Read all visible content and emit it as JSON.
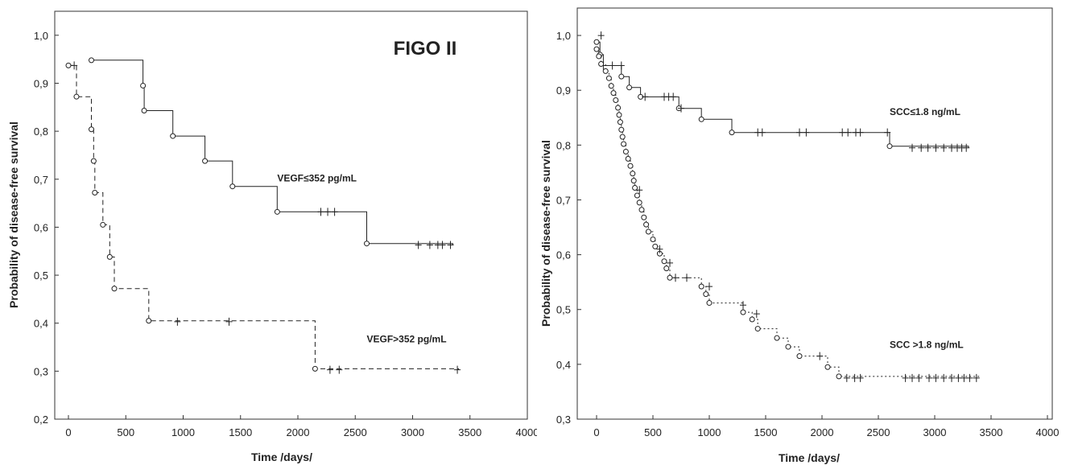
{
  "chart_data": [
    {
      "type": "line",
      "title": "FIGO II",
      "xlabel": "Time /days/",
      "ylabel": "Probability of disease-free survival",
      "xlim": [
        -100,
        4000
      ],
      "ylim": [
        0.2,
        1.05
      ],
      "xticks": [
        "0",
        "500",
        "1000",
        "1500",
        "2000",
        "2500",
        "3000",
        "3500",
        "4000"
      ],
      "yticks": [
        "0,2",
        "0,3",
        "0,4",
        "0,5",
        "0,6",
        "0,7",
        "0,8",
        "0,9",
        "1,0"
      ],
      "grid": false,
      "series": [
        {
          "name": "VEGF≤352 pg/mL",
          "style": "solid",
          "label_at": [
            1820,
            0.695
          ],
          "steps": [
            [
              200,
              0.948
            ],
            [
              650,
              0.895
            ],
            [
              660,
              0.843
            ],
            [
              910,
              0.79
            ],
            [
              1190,
              0.738
            ],
            [
              1430,
              0.685
            ],
            [
              1820,
              0.632
            ],
            [
              2600,
              0.566
            ],
            [
              3350,
              0.563
            ]
          ],
          "events": [
            [
              200,
              0.948
            ],
            [
              650,
              0.895
            ],
            [
              660,
              0.843
            ],
            [
              910,
              0.79
            ],
            [
              1190,
              0.738
            ],
            [
              1430,
              0.685
            ],
            [
              1820,
              0.632
            ],
            [
              2600,
              0.566
            ]
          ],
          "censored": [
            [
              2200,
              0.632
            ],
            [
              2260,
              0.632
            ],
            [
              2320,
              0.632
            ],
            [
              3050,
              0.563
            ],
            [
              3150,
              0.563
            ],
            [
              3220,
              0.563
            ],
            [
              3260,
              0.563
            ],
            [
              3330,
              0.563
            ]
          ]
        },
        {
          "name": "VEGF>352 pg/mL",
          "style": "dashed",
          "label_at": [
            2600,
            0.36
          ],
          "steps": [
            [
              0,
              0.937
            ],
            [
              70,
              0.872
            ],
            [
              200,
              0.804
            ],
            [
              220,
              0.738
            ],
            [
              230,
              0.672
            ],
            [
              300,
              0.605
            ],
            [
              360,
              0.538
            ],
            [
              400,
              0.472
            ],
            [
              700,
              0.405
            ],
            [
              2150,
              0.305
            ],
            [
              3400,
              0.303
            ]
          ],
          "events": [
            [
              0,
              0.937
            ],
            [
              70,
              0.872
            ],
            [
              200,
              0.804
            ],
            [
              220,
              0.738
            ],
            [
              230,
              0.672
            ],
            [
              300,
              0.605
            ],
            [
              360,
              0.538
            ],
            [
              400,
              0.472
            ],
            [
              700,
              0.405
            ],
            [
              2150,
              0.305
            ]
          ],
          "censored": [
            [
              50,
              0.937
            ],
            [
              950,
              0.403
            ],
            [
              1400,
              0.403
            ],
            [
              2280,
              0.303
            ],
            [
              2360,
              0.303
            ],
            [
              3390,
              0.303
            ]
          ]
        }
      ]
    },
    {
      "type": "line",
      "title": "",
      "xlabel": "Time /days/",
      "ylabel": "Probability of disease-free survival",
      "xlim": [
        -100,
        4000
      ],
      "ylim": [
        0.3,
        1.05
      ],
      "xticks": [
        "0",
        "500",
        "1000",
        "1500",
        "2000",
        "2500",
        "3000",
        "3500",
        "4000"
      ],
      "yticks": [
        "0,3",
        "0,4",
        "0,5",
        "0,6",
        "0,7",
        "0,8",
        "0,9",
        "1,0"
      ],
      "grid": false,
      "series": [
        {
          "name": "SCC≤1.8 ng/mL",
          "style": "solid",
          "label_at": [
            2600,
            0.855
          ],
          "steps": [
            [
              0,
              0.988
            ],
            [
              30,
              0.965
            ],
            [
              60,
              0.945
            ],
            [
              220,
              0.925
            ],
            [
              290,
              0.905
            ],
            [
              390,
              0.888
            ],
            [
              730,
              0.867
            ],
            [
              930,
              0.847
            ],
            [
              1200,
              0.823
            ],
            [
              2600,
              0.798
            ],
            [
              3300,
              0.795
            ]
          ],
          "events": [
            [
              0,
              0.988
            ],
            [
              30,
              0.965
            ],
            [
              220,
              0.925
            ],
            [
              290,
              0.905
            ],
            [
              390,
              0.888
            ],
            [
              730,
              0.867
            ],
            [
              930,
              0.847
            ],
            [
              1200,
              0.823
            ],
            [
              2600,
              0.798
            ]
          ],
          "censored": [
            [
              40,
              1.0
            ],
            [
              60,
              0.945
            ],
            [
              140,
              0.945
            ],
            [
              220,
              0.945
            ],
            [
              430,
              0.888
            ],
            [
              600,
              0.888
            ],
            [
              640,
              0.888
            ],
            [
              680,
              0.888
            ],
            [
              750,
              0.867
            ],
            [
              1430,
              0.823
            ],
            [
              1470,
              0.823
            ],
            [
              1800,
              0.823
            ],
            [
              1860,
              0.823
            ],
            [
              2180,
              0.823
            ],
            [
              2230,
              0.823
            ],
            [
              2300,
              0.823
            ],
            [
              2340,
              0.823
            ],
            [
              2580,
              0.823
            ],
            [
              2800,
              0.795
            ],
            [
              2880,
              0.795
            ],
            [
              2940,
              0.795
            ],
            [
              3010,
              0.795
            ],
            [
              3080,
              0.795
            ],
            [
              3150,
              0.795
            ],
            [
              3200,
              0.795
            ],
            [
              3240,
              0.795
            ],
            [
              3280,
              0.795
            ]
          ]
        },
        {
          "name": "SCC >1.8 ng/mL",
          "style": "dotted",
          "label_at": [
            2600,
            0.43
          ],
          "steps": [
            [
              0,
              0.975
            ],
            [
              20,
              0.962
            ],
            [
              40,
              0.948
            ],
            [
              80,
              0.935
            ],
            [
              110,
              0.922
            ],
            [
              130,
              0.908
            ],
            [
              150,
              0.895
            ],
            [
              170,
              0.882
            ],
            [
              190,
              0.868
            ],
            [
              200,
              0.855
            ],
            [
              210,
              0.842
            ],
            [
              220,
              0.828
            ],
            [
              230,
              0.815
            ],
            [
              240,
              0.802
            ],
            [
              260,
              0.788
            ],
            [
              280,
              0.775
            ],
            [
              300,
              0.762
            ],
            [
              320,
              0.748
            ],
            [
              330,
              0.735
            ],
            [
              340,
              0.722
            ],
            [
              360,
              0.708
            ],
            [
              380,
              0.695
            ],
            [
              400,
              0.682
            ],
            [
              420,
              0.668
            ],
            [
              440,
              0.655
            ],
            [
              460,
              0.642
            ],
            [
              500,
              0.628
            ],
            [
              520,
              0.615
            ],
            [
              560,
              0.602
            ],
            [
              600,
              0.588
            ],
            [
              620,
              0.575
            ],
            [
              650,
              0.558
            ],
            [
              930,
              0.542
            ],
            [
              970,
              0.528
            ],
            [
              1000,
              0.512
            ],
            [
              1300,
              0.495
            ],
            [
              1380,
              0.482
            ],
            [
              1430,
              0.465
            ],
            [
              1600,
              0.448
            ],
            [
              1700,
              0.432
            ],
            [
              1800,
              0.415
            ],
            [
              2050,
              0.395
            ],
            [
              2150,
              0.378
            ],
            [
              3400,
              0.375
            ]
          ],
          "events": [
            [
              0,
              0.975
            ],
            [
              20,
              0.962
            ],
            [
              40,
              0.948
            ],
            [
              80,
              0.935
            ],
            [
              110,
              0.922
            ],
            [
              130,
              0.908
            ],
            [
              150,
              0.895
            ],
            [
              170,
              0.882
            ],
            [
              190,
              0.868
            ],
            [
              200,
              0.855
            ],
            [
              210,
              0.842
            ],
            [
              220,
              0.828
            ],
            [
              230,
              0.815
            ],
            [
              240,
              0.802
            ],
            [
              260,
              0.788
            ],
            [
              280,
              0.775
            ],
            [
              300,
              0.762
            ],
            [
              320,
              0.748
            ],
            [
              330,
              0.735
            ],
            [
              340,
              0.722
            ],
            [
              360,
              0.708
            ],
            [
              380,
              0.695
            ],
            [
              400,
              0.682
            ],
            [
              420,
              0.668
            ],
            [
              440,
              0.655
            ],
            [
              460,
              0.642
            ],
            [
              500,
              0.628
            ],
            [
              520,
              0.615
            ],
            [
              560,
              0.602
            ],
            [
              600,
              0.588
            ],
            [
              620,
              0.575
            ],
            [
              650,
              0.558
            ],
            [
              930,
              0.542
            ],
            [
              970,
              0.528
            ],
            [
              1000,
              0.512
            ],
            [
              1300,
              0.495
            ],
            [
              1380,
              0.482
            ],
            [
              1430,
              0.465
            ],
            [
              1600,
              0.448
            ],
            [
              1700,
              0.432
            ],
            [
              1800,
              0.415
            ],
            [
              2050,
              0.395
            ],
            [
              2150,
              0.378
            ]
          ],
          "censored": [
            [
              380,
              0.718
            ],
            [
              560,
              0.61
            ],
            [
              650,
              0.585
            ],
            [
              700,
              0.558
            ],
            [
              800,
              0.558
            ],
            [
              1000,
              0.542
            ],
            [
              1300,
              0.508
            ],
            [
              1420,
              0.492
            ],
            [
              1980,
              0.415
            ],
            [
              2220,
              0.375
            ],
            [
              2290,
              0.375
            ],
            [
              2340,
              0.375
            ],
            [
              2740,
              0.375
            ],
            [
              2800,
              0.375
            ],
            [
              2860,
              0.375
            ],
            [
              2950,
              0.375
            ],
            [
              3010,
              0.375
            ],
            [
              3080,
              0.375
            ],
            [
              3150,
              0.375
            ],
            [
              3210,
              0.375
            ],
            [
              3260,
              0.375
            ],
            [
              3310,
              0.375
            ],
            [
              3370,
              0.375
            ]
          ]
        }
      ]
    }
  ]
}
